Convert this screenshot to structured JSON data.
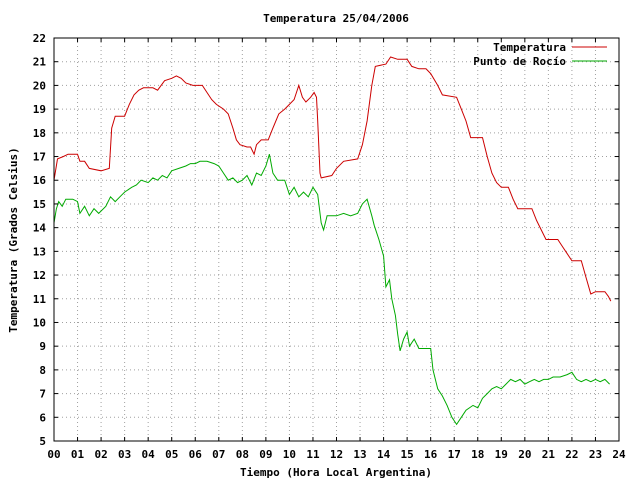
{
  "chart_data": {
    "type": "line",
    "title": "Temperatura 25/04/2006",
    "xlabel": "Tiempo (Hora Local Argentina)",
    "ylabel": "Temperatura (Grados Celsius)",
    "xlim": [
      0,
      24
    ],
    "ylim": [
      5,
      22
    ],
    "x_ticks": [
      "00",
      "01",
      "02",
      "03",
      "04",
      "05",
      "06",
      "07",
      "08",
      "09",
      "10",
      "11",
      "12",
      "13",
      "14",
      "15",
      "16",
      "17",
      "18",
      "19",
      "20",
      "21",
      "22",
      "23",
      "24"
    ],
    "y_ticks": [
      "5",
      "6",
      "7",
      "8",
      "9",
      "10",
      "11",
      "12",
      "13",
      "14",
      "15",
      "16",
      "17",
      "18",
      "19",
      "20",
      "21",
      "22"
    ],
    "grid": true,
    "legend_position": "top-right",
    "series": [
      {
        "name": "Temperatura",
        "color": "#cc0000",
        "points": [
          [
            0.0,
            16.0
          ],
          [
            0.15,
            16.9
          ],
          [
            0.4,
            17.0
          ],
          [
            0.6,
            17.1
          ],
          [
            1.0,
            17.1
          ],
          [
            1.1,
            16.8
          ],
          [
            1.3,
            16.8
          ],
          [
            1.5,
            16.5
          ],
          [
            2.0,
            16.4
          ],
          [
            2.35,
            16.5
          ],
          [
            2.45,
            18.2
          ],
          [
            2.6,
            18.7
          ],
          [
            3.0,
            18.7
          ],
          [
            3.2,
            19.2
          ],
          [
            3.4,
            19.6
          ],
          [
            3.6,
            19.8
          ],
          [
            3.8,
            19.9
          ],
          [
            4.2,
            19.9
          ],
          [
            4.4,
            19.8
          ],
          [
            4.55,
            20.0
          ],
          [
            4.7,
            20.2
          ],
          [
            5.0,
            20.3
          ],
          [
            5.2,
            20.4
          ],
          [
            5.4,
            20.3
          ],
          [
            5.6,
            20.1
          ],
          [
            5.9,
            20.0
          ],
          [
            6.3,
            20.0
          ],
          [
            6.5,
            19.7
          ],
          [
            6.7,
            19.4
          ],
          [
            6.9,
            19.2
          ],
          [
            7.2,
            19.0
          ],
          [
            7.4,
            18.8
          ],
          [
            7.6,
            18.2
          ],
          [
            7.75,
            17.7
          ],
          [
            7.9,
            17.5
          ],
          [
            8.2,
            17.4
          ],
          [
            8.35,
            17.4
          ],
          [
            8.5,
            17.1
          ],
          [
            8.6,
            17.5
          ],
          [
            8.8,
            17.7
          ],
          [
            9.1,
            17.7
          ],
          [
            9.3,
            18.2
          ],
          [
            9.55,
            18.8
          ],
          [
            9.8,
            19.0
          ],
          [
            10.0,
            19.2
          ],
          [
            10.2,
            19.4
          ],
          [
            10.4,
            20.0
          ],
          [
            10.55,
            19.5
          ],
          [
            10.7,
            19.3
          ],
          [
            10.9,
            19.5
          ],
          [
            11.05,
            19.7
          ],
          [
            11.15,
            19.5
          ],
          [
            11.2,
            18.5
          ],
          [
            11.3,
            16.3
          ],
          [
            11.35,
            16.1
          ],
          [
            11.8,
            16.2
          ],
          [
            12.0,
            16.5
          ],
          [
            12.3,
            16.8
          ],
          [
            12.9,
            16.9
          ],
          [
            13.1,
            17.5
          ],
          [
            13.3,
            18.5
          ],
          [
            13.5,
            20.0
          ],
          [
            13.65,
            20.8
          ],
          [
            14.1,
            20.9
          ],
          [
            14.3,
            21.2
          ],
          [
            14.6,
            21.1
          ],
          [
            15.0,
            21.1
          ],
          [
            15.2,
            20.8
          ],
          [
            15.5,
            20.7
          ],
          [
            15.8,
            20.7
          ],
          [
            16.0,
            20.5
          ],
          [
            16.3,
            20.0
          ],
          [
            16.5,
            19.6
          ],
          [
            17.1,
            19.5
          ],
          [
            17.3,
            19.0
          ],
          [
            17.5,
            18.5
          ],
          [
            17.7,
            17.8
          ],
          [
            18.2,
            17.8
          ],
          [
            18.4,
            17.0
          ],
          [
            18.6,
            16.3
          ],
          [
            18.8,
            15.9
          ],
          [
            19.0,
            15.7
          ],
          [
            19.3,
            15.7
          ],
          [
            19.5,
            15.2
          ],
          [
            19.7,
            14.8
          ],
          [
            20.3,
            14.8
          ],
          [
            20.5,
            14.3
          ],
          [
            20.7,
            13.9
          ],
          [
            20.9,
            13.5
          ],
          [
            21.4,
            13.5
          ],
          [
            21.6,
            13.2
          ],
          [
            21.8,
            12.9
          ],
          [
            22.0,
            12.6
          ],
          [
            22.4,
            12.6
          ],
          [
            22.6,
            11.9
          ],
          [
            22.8,
            11.2
          ],
          [
            23.0,
            11.3
          ],
          [
            23.4,
            11.3
          ],
          [
            23.55,
            11.1
          ],
          [
            23.65,
            10.9
          ]
        ]
      },
      {
        "name": "Punto de Rocío",
        "color": "#00aa00",
        "points": [
          [
            0.0,
            14.2
          ],
          [
            0.1,
            14.8
          ],
          [
            0.2,
            15.1
          ],
          [
            0.35,
            14.9
          ],
          [
            0.5,
            15.2
          ],
          [
            0.8,
            15.2
          ],
          [
            1.0,
            15.1
          ],
          [
            1.1,
            14.6
          ],
          [
            1.3,
            14.9
          ],
          [
            1.5,
            14.5
          ],
          [
            1.7,
            14.8
          ],
          [
            1.9,
            14.6
          ],
          [
            2.2,
            14.9
          ],
          [
            2.4,
            15.3
          ],
          [
            2.6,
            15.1
          ],
          [
            2.8,
            15.3
          ],
          [
            3.0,
            15.5
          ],
          [
            3.3,
            15.7
          ],
          [
            3.5,
            15.8
          ],
          [
            3.7,
            16.0
          ],
          [
            4.0,
            15.9
          ],
          [
            4.2,
            16.1
          ],
          [
            4.4,
            16.0
          ],
          [
            4.6,
            16.2
          ],
          [
            4.8,
            16.1
          ],
          [
            5.0,
            16.4
          ],
          [
            5.3,
            16.5
          ],
          [
            5.6,
            16.6
          ],
          [
            5.8,
            16.7
          ],
          [
            6.0,
            16.7
          ],
          [
            6.2,
            16.8
          ],
          [
            6.5,
            16.8
          ],
          [
            6.8,
            16.7
          ],
          [
            7.0,
            16.6
          ],
          [
            7.2,
            16.3
          ],
          [
            7.4,
            16.0
          ],
          [
            7.6,
            16.1
          ],
          [
            7.8,
            15.9
          ],
          [
            8.0,
            16.0
          ],
          [
            8.2,
            16.2
          ],
          [
            8.4,
            15.8
          ],
          [
            8.6,
            16.3
          ],
          [
            8.8,
            16.2
          ],
          [
            9.0,
            16.6
          ],
          [
            9.15,
            17.1
          ],
          [
            9.3,
            16.3
          ],
          [
            9.5,
            16.0
          ],
          [
            9.8,
            16.0
          ],
          [
            10.0,
            15.4
          ],
          [
            10.2,
            15.7
          ],
          [
            10.4,
            15.3
          ],
          [
            10.6,
            15.5
          ],
          [
            10.8,
            15.3
          ],
          [
            11.0,
            15.7
          ],
          [
            11.2,
            15.4
          ],
          [
            11.35,
            14.2
          ],
          [
            11.45,
            13.9
          ],
          [
            11.6,
            14.5
          ],
          [
            12.0,
            14.5
          ],
          [
            12.3,
            14.6
          ],
          [
            12.6,
            14.5
          ],
          [
            12.9,
            14.6
          ],
          [
            13.1,
            15.0
          ],
          [
            13.3,
            15.2
          ],
          [
            13.5,
            14.5
          ],
          [
            13.6,
            14.1
          ],
          [
            13.8,
            13.5
          ],
          [
            14.0,
            12.8
          ],
          [
            14.1,
            11.5
          ],
          [
            14.25,
            11.8
          ],
          [
            14.35,
            11.0
          ],
          [
            14.5,
            10.3
          ],
          [
            14.6,
            9.5
          ],
          [
            14.7,
            8.8
          ],
          [
            14.85,
            9.3
          ],
          [
            15.0,
            9.6
          ],
          [
            15.1,
            9.0
          ],
          [
            15.3,
            9.3
          ],
          [
            15.5,
            8.9
          ],
          [
            15.8,
            8.9
          ],
          [
            16.0,
            8.9
          ],
          [
            16.1,
            8.0
          ],
          [
            16.3,
            7.2
          ],
          [
            16.5,
            6.9
          ],
          [
            16.7,
            6.5
          ],
          [
            16.9,
            6.0
          ],
          [
            17.1,
            5.7
          ],
          [
            17.3,
            6.0
          ],
          [
            17.5,
            6.3
          ],
          [
            17.8,
            6.5
          ],
          [
            18.0,
            6.4
          ],
          [
            18.2,
            6.8
          ],
          [
            18.4,
            7.0
          ],
          [
            18.6,
            7.2
          ],
          [
            18.8,
            7.3
          ],
          [
            19.0,
            7.2
          ],
          [
            19.2,
            7.4
          ],
          [
            19.4,
            7.6
          ],
          [
            19.6,
            7.5
          ],
          [
            19.8,
            7.6
          ],
          [
            20.0,
            7.4
          ],
          [
            20.2,
            7.5
          ],
          [
            20.4,
            7.6
          ],
          [
            20.6,
            7.5
          ],
          [
            20.8,
            7.6
          ],
          [
            21.0,
            7.6
          ],
          [
            21.2,
            7.7
          ],
          [
            21.5,
            7.7
          ],
          [
            21.8,
            7.8
          ],
          [
            22.0,
            7.9
          ],
          [
            22.2,
            7.6
          ],
          [
            22.4,
            7.5
          ],
          [
            22.6,
            7.6
          ],
          [
            22.8,
            7.5
          ],
          [
            23.0,
            7.6
          ],
          [
            23.2,
            7.5
          ],
          [
            23.4,
            7.6
          ],
          [
            23.6,
            7.4
          ]
        ]
      }
    ]
  }
}
